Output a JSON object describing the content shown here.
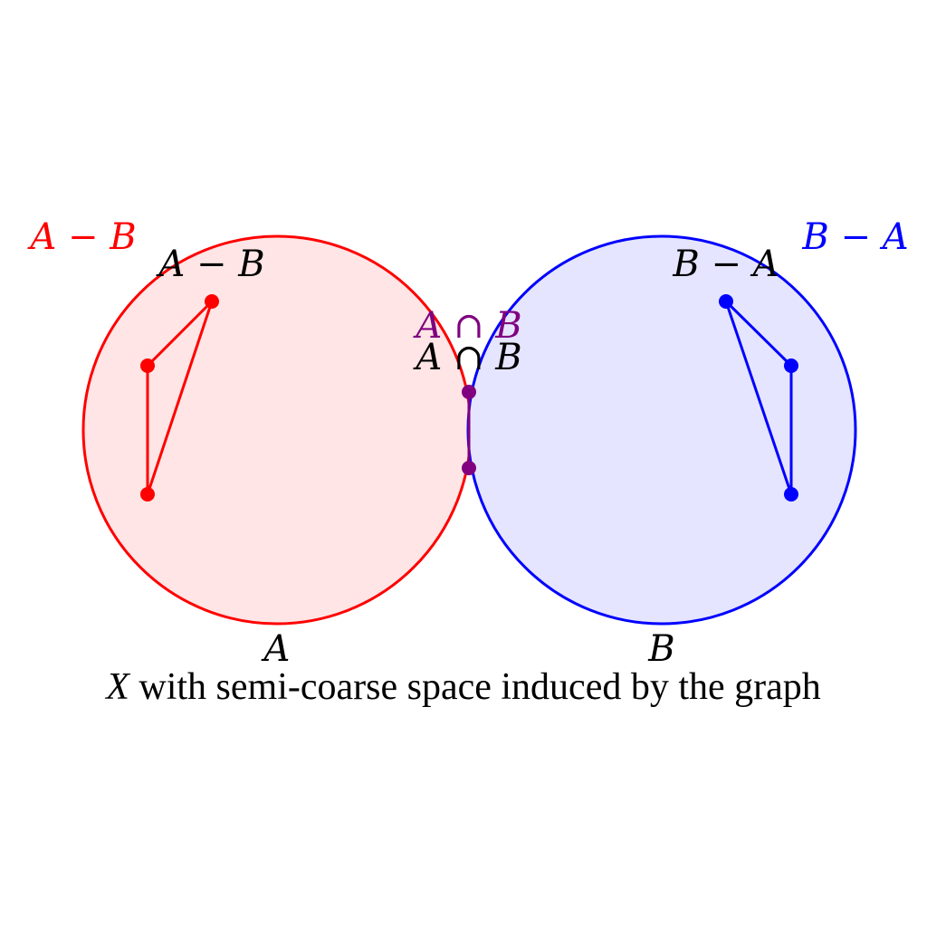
{
  "colors": {
    "set_a": "#ff0000",
    "set_a_fill": "#ffe5e5",
    "set_b": "#0000ff",
    "set_b_fill": "#e5e5ff",
    "intersection": "#800080",
    "text": "#000000"
  },
  "labels": {
    "a_minus_b_outer": "A − B",
    "b_minus_a_outer": "B − A",
    "a_minus_b_inner": "A − B",
    "b_minus_a_inner": "B − A",
    "intersection_colored": "A ∩ B",
    "intersection_black": "A ∩ B",
    "set_a": "A",
    "set_b": "B"
  },
  "caption": {
    "variable": "X",
    "text": " with semi-coarse space induced by the graph"
  }
}
